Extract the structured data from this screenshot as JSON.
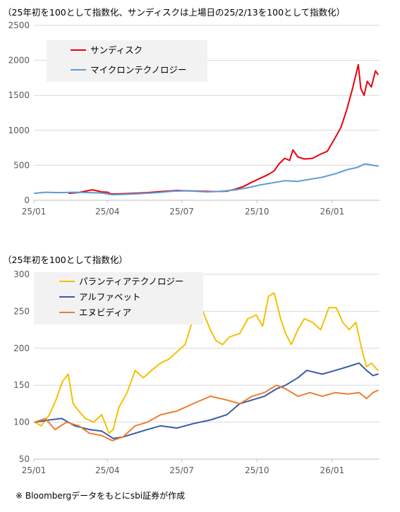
{
  "chart1": {
    "note": "（25年初を100として指数化、サンディスクは上場日の25/2/13を100として指数化）"
  },
  "chart2": {
    "note": "（25年初を100として指数化）"
  },
  "footnote": "※ Bloombergデータをもとにsbi証券が作成",
  "colors": {
    "sandisk": "#e8000b",
    "micron": "#5b9bd5",
    "palantir": "#f5c000",
    "alphabet": "#3a5ba8",
    "nvidia": "#ed7d31",
    "grid": "#d9d9d9",
    "legend_bg": "#f2f2f2"
  },
  "chart_data": [
    {
      "type": "line",
      "title": "",
      "x_ticks": [
        "25/01",
        "25/04",
        "25/07",
        "25/10",
        "26/01"
      ],
      "ylim": [
        0,
        2500
      ],
      "y_ticks": [
        0,
        500,
        1000,
        1500,
        2000,
        2500
      ],
      "grid": true,
      "legend_placement": "top-left",
      "series": [
        {
          "name": "サンディスク",
          "color": "#e8000b",
          "x": [
            "2025-02-13",
            "2025-02-24",
            "2025-03-05",
            "2025-03-14",
            "2025-03-25",
            "2025-04-02",
            "2025-04-04",
            "2025-04-09",
            "2025-04-21",
            "2025-05-02",
            "2025-05-20",
            "2025-06-05",
            "2025-06-25",
            "2025-07-10",
            "2025-07-25",
            "2025-08-08",
            "2025-08-25",
            "2025-09-05",
            "2025-09-15",
            "2025-09-25",
            "2025-10-06",
            "2025-10-15",
            "2025-10-22",
            "2025-10-28",
            "2025-11-04",
            "2025-11-10",
            "2025-11-14",
            "2025-11-20",
            "2025-11-28",
            "2025-12-08",
            "2025-12-18",
            "2025-12-26",
            "2026-01-06",
            "2026-01-12",
            "2026-01-19",
            "2026-01-26",
            "2026-02-02",
            "2026-02-05",
            "2026-02-09",
            "2026-02-13",
            "2026-02-18",
            "2026-02-23",
            "2026-02-26"
          ],
          "values": [
            100,
            110,
            130,
            150,
            120,
            115,
            95,
            90,
            95,
            100,
            110,
            125,
            140,
            135,
            130,
            125,
            130,
            160,
            200,
            260,
            320,
            370,
            420,
            520,
            600,
            570,
            720,
            620,
            590,
            600,
            660,
            700,
            920,
            1050,
            1300,
            1600,
            1940,
            1600,
            1500,
            1700,
            1620,
            1850,
            1800
          ]
        },
        {
          "name": "マイクロンテクノロジー",
          "color": "#5b9bd5",
          "x": [
            "2025-01-02",
            "2025-01-15",
            "2025-02-01",
            "2025-02-20",
            "2025-03-10",
            "2025-03-25",
            "2025-04-04",
            "2025-04-08",
            "2025-04-20",
            "2025-05-10",
            "2025-06-01",
            "2025-06-20",
            "2025-07-10",
            "2025-08-01",
            "2025-08-20",
            "2025-09-05",
            "2025-09-20",
            "2025-10-05",
            "2025-10-20",
            "2025-11-05",
            "2025-11-20",
            "2025-12-05",
            "2025-12-20",
            "2026-01-05",
            "2026-01-20",
            "2026-02-01",
            "2026-02-10",
            "2026-02-20",
            "2026-02-26"
          ],
          "values": [
            100,
            115,
            110,
            115,
            110,
            105,
            85,
            80,
            85,
            95,
            110,
            130,
            135,
            120,
            130,
            150,
            180,
            220,
            250,
            280,
            270,
            300,
            330,
            380,
            440,
            470,
            520,
            500,
            490
          ]
        }
      ]
    },
    {
      "type": "line",
      "title": "",
      "x_ticks": [
        "25/01",
        "25/04",
        "25/07",
        "25/10",
        "26/01"
      ],
      "ylim": [
        50,
        300
      ],
      "y_ticks": [
        50,
        100,
        150,
        200,
        250,
        300
      ],
      "grid": true,
      "legend_placement": "top-left",
      "series": [
        {
          "name": "パランティアテクノロジー",
          "color": "#f5c000",
          "x": [
            "2025-01-02",
            "2025-01-10",
            "2025-01-20",
            "2025-01-28",
            "2025-02-05",
            "2025-02-12",
            "2025-02-18",
            "2025-02-25",
            "2025-03-05",
            "2025-03-15",
            "2025-03-25",
            "2025-04-03",
            "2025-04-08",
            "2025-04-15",
            "2025-04-25",
            "2025-05-05",
            "2025-05-15",
            "2025-05-25",
            "2025-06-05",
            "2025-06-15",
            "2025-06-25",
            "2025-07-05",
            "2025-07-15",
            "2025-07-25",
            "2025-08-05",
            "2025-08-12",
            "2025-08-20",
            "2025-08-28",
            "2025-09-10",
            "2025-09-20",
            "2025-09-30",
            "2025-10-08",
            "2025-10-15",
            "2025-10-22",
            "2025-10-30",
            "2025-11-05",
            "2025-11-12",
            "2025-11-20",
            "2025-11-28",
            "2025-12-08",
            "2025-12-18",
            "2025-12-28",
            "2026-01-06",
            "2026-01-14",
            "2026-01-22",
            "2026-01-30",
            "2026-02-06",
            "2026-02-12",
            "2026-02-18",
            "2026-02-26"
          ],
          "values": [
            100,
            95,
            110,
            130,
            155,
            165,
            125,
            115,
            105,
            100,
            110,
            85,
            90,
            120,
            140,
            170,
            160,
            170,
            180,
            185,
            195,
            205,
            240,
            255,
            225,
            210,
            205,
            215,
            220,
            240,
            245,
            230,
            270,
            275,
            240,
            220,
            205,
            225,
            240,
            235,
            225,
            255,
            255,
            235,
            225,
            235,
            200,
            175,
            180,
            170
          ]
        },
        {
          "name": "アルファベット",
          "color": "#3a5ba8",
          "x": [
            "2025-01-02",
            "2025-01-20",
            "2025-02-04",
            "2025-02-20",
            "2025-03-10",
            "2025-03-25",
            "2025-04-08",
            "2025-04-20",
            "2025-05-05",
            "2025-05-20",
            "2025-06-05",
            "2025-06-25",
            "2025-07-15",
            "2025-08-05",
            "2025-08-25",
            "2025-09-10",
            "2025-09-25",
            "2025-10-10",
            "2025-10-25",
            "2025-11-05",
            "2025-11-20",
            "2025-12-01",
            "2025-12-20",
            "2026-01-05",
            "2026-01-20",
            "2026-02-03",
            "2026-02-12",
            "2026-02-20",
            "2026-02-26"
          ],
          "values": [
            100,
            103,
            105,
            95,
            90,
            88,
            78,
            80,
            85,
            90,
            95,
            92,
            98,
            103,
            110,
            125,
            130,
            135,
            145,
            150,
            160,
            170,
            165,
            170,
            175,
            180,
            170,
            163,
            165
          ]
        },
        {
          "name": "エヌビディア",
          "color": "#ed7d31",
          "x": [
            "2025-01-02",
            "2025-01-15",
            "2025-01-27",
            "2025-02-10",
            "2025-02-25",
            "2025-03-10",
            "2025-03-25",
            "2025-04-07",
            "2025-04-20",
            "2025-05-05",
            "2025-05-20",
            "2025-06-05",
            "2025-06-25",
            "2025-07-15",
            "2025-08-05",
            "2025-08-25",
            "2025-09-10",
            "2025-09-25",
            "2025-10-10",
            "2025-10-25",
            "2025-11-05",
            "2025-11-20",
            "2025-12-05",
            "2025-12-20",
            "2026-01-05",
            "2026-01-20",
            "2026-02-03",
            "2026-02-12",
            "2026-02-20",
            "2026-02-26"
          ],
          "values": [
            100,
            105,
            90,
            100,
            95,
            85,
            82,
            75,
            80,
            95,
            100,
            110,
            115,
            125,
            135,
            130,
            125,
            135,
            140,
            150,
            145,
            135,
            140,
            135,
            140,
            138,
            140,
            132,
            140,
            143
          ]
        }
      ]
    }
  ]
}
